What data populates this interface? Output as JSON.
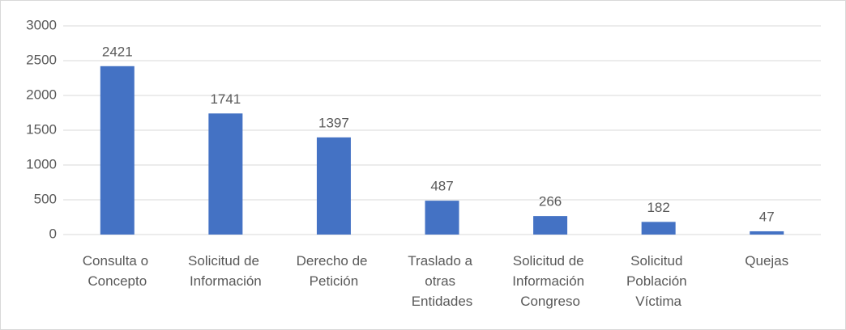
{
  "chart_data": {
    "type": "bar",
    "categories": [
      "Consulta o Concepto",
      "Solicitud de Información",
      "Derecho de Petición",
      "Traslado a otras Entidades",
      "Solicitud de Información Congreso",
      "Solicitud Población Víctima",
      "Quejas"
    ],
    "values": [
      2421,
      1741,
      1397,
      487,
      266,
      182,
      47
    ],
    "color": "#4472c4",
    "ylim": [
      0,
      3000
    ],
    "yticks": [
      0,
      500,
      1000,
      1500,
      2000,
      2500,
      3000
    ],
    "grid": true
  }
}
